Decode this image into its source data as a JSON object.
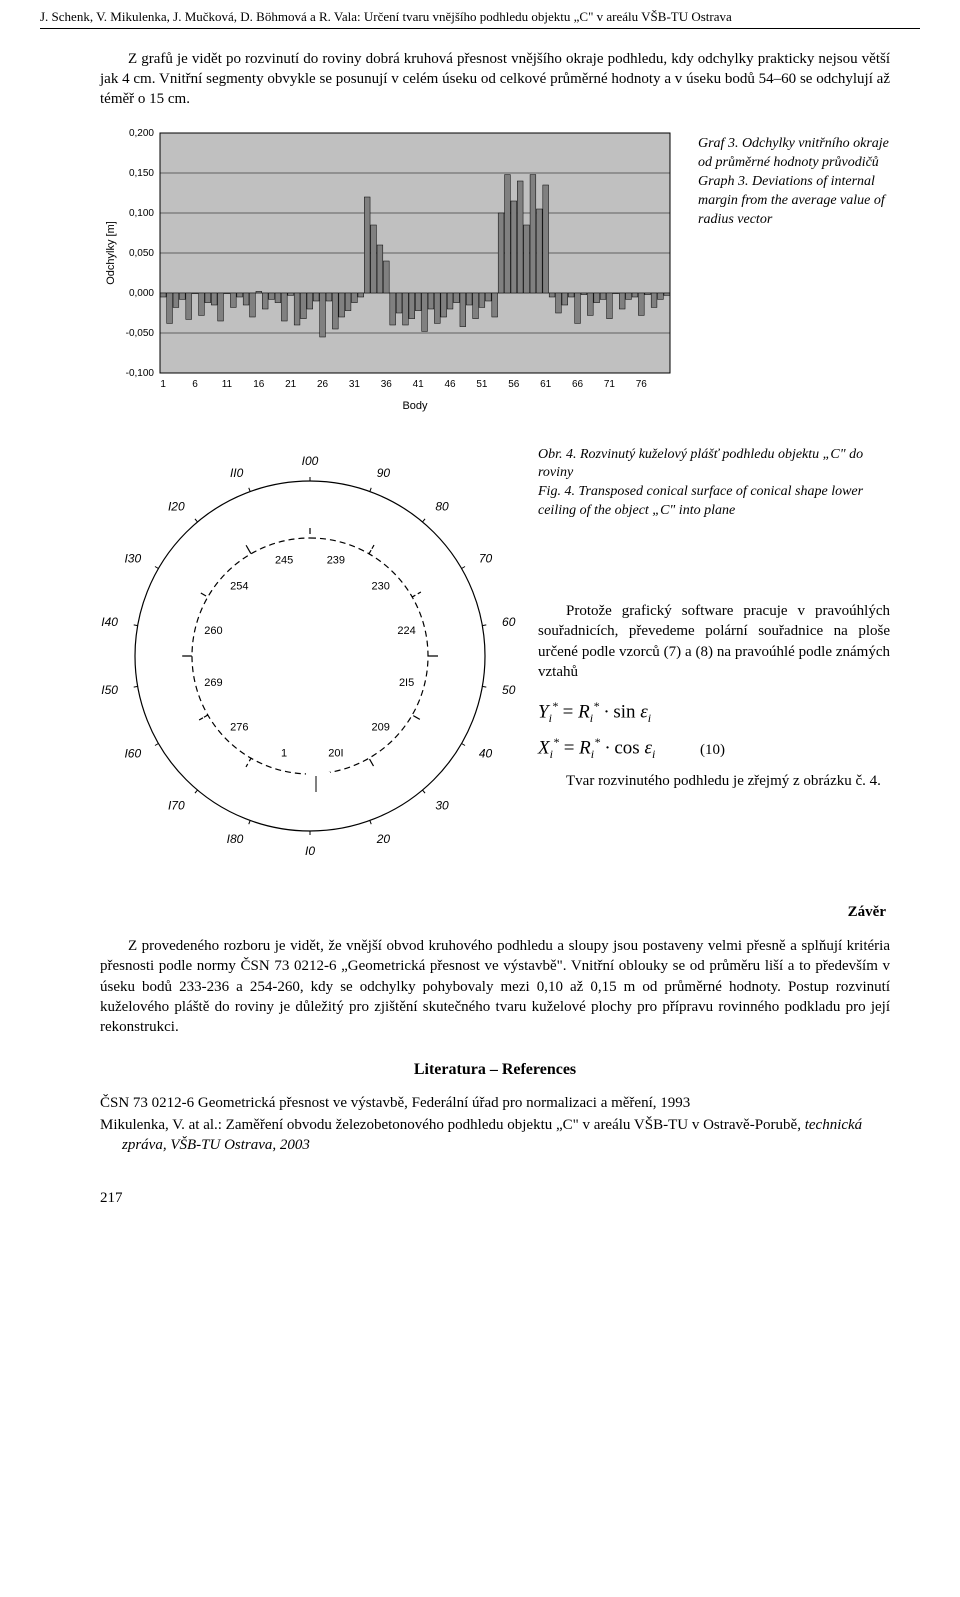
{
  "header": {
    "running": "J. Schenk, V. Mikulenka, J. Mučková, D. Böhmová a R. Vala: Určení tvaru vnějšího podhledu objektu „C\" v areálu VŠB-TU Ostrava"
  },
  "para1": "Z grafů je vidět po rozvinutí do roviny dobrá kruhová přesnost vnějšího okraje podhledu, kdy odchylky prakticky nejsou větší jak 4 cm. Vnitřní segmenty obvykle se posunují v celém úseku od celkové průměrné hodnoty a v úseku bodů 54–60 se odchylují až téměř o 15 cm.",
  "chart": {
    "type": "bar",
    "ylabel": "Odchylky [m]",
    "xlabel": "Body",
    "ylim": [
      -0.1,
      0.2
    ],
    "yticks": [
      "-0,100",
      "-0,050",
      "0,000",
      "0,050",
      "0,100",
      "0,150",
      "0,200"
    ],
    "xticks": [
      "1",
      "6",
      "11",
      "16",
      "21",
      "26",
      "31",
      "36",
      "41",
      "46",
      "51",
      "56",
      "61",
      "66",
      "71",
      "76"
    ],
    "bar_color": "#808080",
    "bar_border": "#000000",
    "plot_bg": "#c0c0c0",
    "grid_color": "#000000",
    "axis_fontsize": 10,
    "label_fontsize": 11,
    "values": [
      -0.005,
      -0.038,
      -0.018,
      -0.008,
      -0.033,
      0.0,
      -0.028,
      -0.012,
      -0.015,
      -0.035,
      0.0,
      -0.018,
      -0.005,
      -0.015,
      -0.03,
      0.002,
      -0.02,
      -0.008,
      -0.012,
      -0.035,
      -0.003,
      -0.04,
      -0.032,
      -0.02,
      -0.01,
      -0.055,
      -0.01,
      -0.045,
      -0.03,
      -0.022,
      -0.012,
      -0.005,
      0.12,
      0.085,
      0.06,
      0.04,
      -0.04,
      -0.025,
      -0.04,
      -0.032,
      -0.022,
      -0.048,
      -0.02,
      -0.038,
      -0.03,
      -0.02,
      -0.012,
      -0.042,
      -0.015,
      -0.032,
      -0.018,
      -0.01,
      -0.03,
      0.1,
      0.148,
      0.115,
      0.14,
      0.085,
      0.148,
      0.105,
      0.135,
      -0.005,
      -0.025,
      -0.015,
      -0.005,
      -0.038,
      -0.002,
      -0.028,
      -0.012,
      -0.008,
      -0.032,
      0.0,
      -0.02,
      -0.008,
      -0.005,
      -0.028,
      -0.002,
      -0.018,
      -0.008,
      -0.003
    ]
  },
  "chart_caption": {
    "cz": "Graf 3. Odchylky vnitřního okraje od průměrné hodnoty průvodičů",
    "en": "Graph 3. Deviations of internal margin from the average value of radius vector"
  },
  "figure": {
    "outer_labels": [
      "I00",
      "90",
      "80",
      "70",
      "60",
      "50",
      "40",
      "30",
      "20",
      "I0",
      "I80",
      "I70",
      "I60",
      "I50",
      "I40",
      "I30",
      "I20",
      "II0"
    ],
    "inner_labels": [
      "239",
      "230",
      "224",
      "2I5",
      "209",
      "20I",
      "1",
      "276",
      "269",
      "260",
      "254",
      "245"
    ],
    "caption_cz": "Obr. 4. Rozvinutý kuželový plášť podhledu objektu „C\" do roviny",
    "caption_en": "Fig. 4. Transposed conical surface of conical shape lower ceiling of the object „C\" into plane",
    "line_color": "#000000",
    "dash_pattern": "6,4",
    "bg": "#ffffff"
  },
  "side_text": {
    "p1": "Protože grafický software pracuje v pravoúhlých souřadnicích, převedeme polární souřadnice na ploše určené podle vzorců (7) a (8) na pravoúhlé podle známých vztahů",
    "eq1": "Yᵢ* = Rᵢ* · sin εᵢ",
    "eq2": "Xᵢ* = Rᵢ* · cos εᵢ",
    "eqnum": "(10)",
    "p2": "Tvar rozvinutého podhledu je zřejmý z obrázku č. 4."
  },
  "zaver_title": "Závěr",
  "zaver_text": "Z provedeného rozboru je vidět, že vnější obvod kruhového podhledu a sloupy jsou postaveny velmi přesně a splňují kritéria přesnosti podle normy ČSN 73 0212-6 „Geometrická přesnost ve výstavbě\". Vnitřní oblouky se od průměru liší a to především v úseku bodů 233-236 a 254-260, kdy se odchylky pohybovaly mezi 0,10 až 0,15 m od průměrné hodnoty. Postup rozvinutí kuželového pláště do roviny je důležitý pro zjištění skutečného tvaru kuželové plochy pro přípravu rovinného podkladu pro její rekonstrukci.",
  "refs_title": "Literatura – References",
  "refs": [
    "ČSN 73 0212-6 Geometrická přesnost ve výstavbě, Federální úřad pro normalizaci a měření, 1993",
    "Mikulenka, V. at al.: Zaměření obvodu železobetonového podhledu objektu „C\" v areálu VŠB-TU v Ostravě-Porubě, technická zpráva, VŠB-TU Ostrava, 2003"
  ],
  "page_number": "217"
}
